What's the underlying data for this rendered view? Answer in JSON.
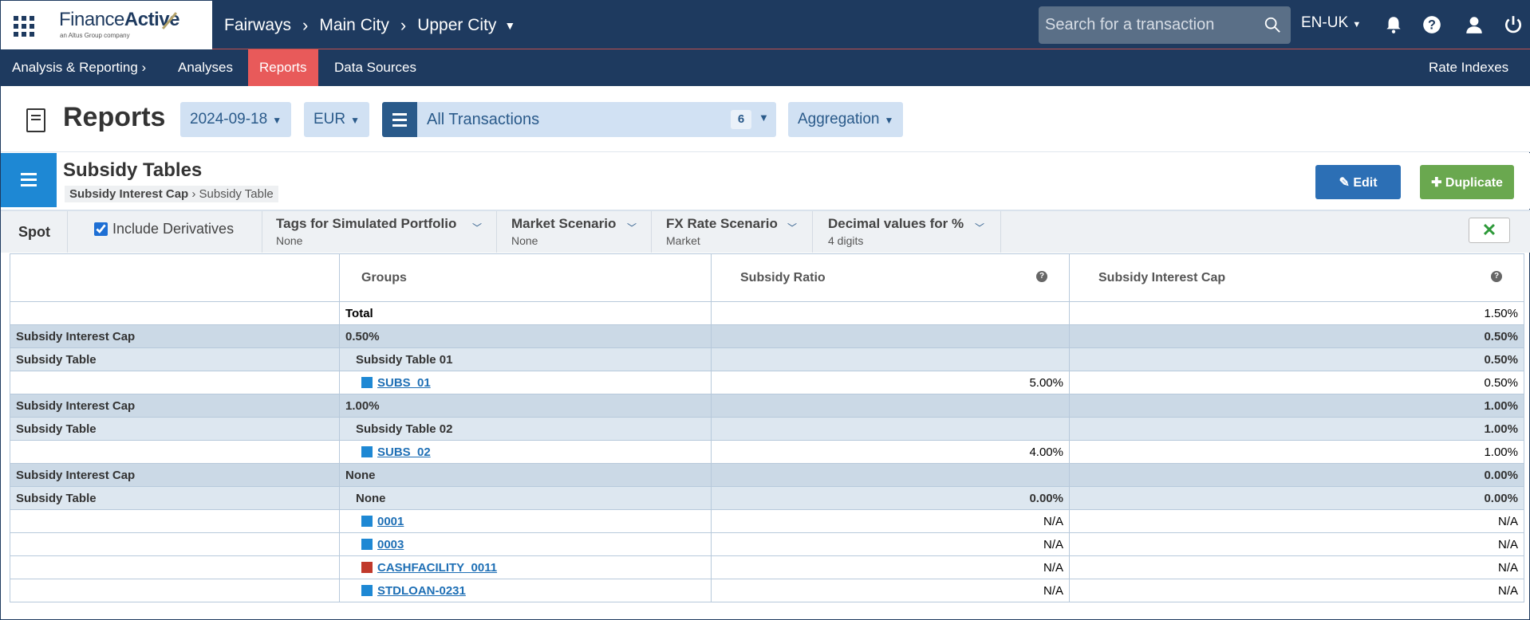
{
  "topbar": {
    "logo_main": "Finance",
    "logo_bold": "Active",
    "logo_sub": "an Altus Group company",
    "breadcrumb": [
      "Fairways",
      "Main City",
      "Upper City"
    ],
    "search_placeholder": "Search for a transaction",
    "language": "EN-UK"
  },
  "nav": {
    "section": "Analysis & Reporting",
    "items": [
      "Analyses",
      "Reports",
      "Data Sources"
    ],
    "active": "Reports",
    "right": "Rate Indexes"
  },
  "reports": {
    "title": "Reports",
    "date": "2024-09-18",
    "currency": "EUR",
    "transactions": "All Transactions",
    "transactions_count": "6",
    "aggregation": "Aggregation"
  },
  "subsidy": {
    "title": "Subsidy Tables",
    "crumb_bold": "Subsidy Interest Cap",
    "crumb_rest": "Subsidy Table",
    "edit_label": "Edit",
    "duplicate_label": "Duplicate"
  },
  "filters": {
    "spot": "Spot",
    "include_derivatives": "Include Derivatives",
    "tags_label": "Tags for Simulated Portfolio",
    "tags_value": "None",
    "market_label": "Market Scenario",
    "market_value": "None",
    "fx_label": "FX Rate Scenario",
    "fx_value": "Market",
    "decimal_label": "Decimal values for %",
    "decimal_value": "4 digits"
  },
  "table": {
    "headers": [
      "",
      "Groups",
      "Subsidy Ratio",
      "Subsidy Interest Cap"
    ],
    "total_label": "Total",
    "total_cap": "1.50%",
    "rows": [
      {
        "type": "lvl1",
        "c0": "Subsidy Interest Cap",
        "c1": "0.50%",
        "c2": "",
        "c3": "0.50%"
      },
      {
        "type": "lvl2",
        "c0": "Subsidy Table",
        "c1": "Subsidy Table 01",
        "c2": "",
        "c3": "0.50%"
      },
      {
        "type": "leaf",
        "c0": "",
        "c1": "SUBS_01",
        "color": "#1e88d4",
        "c2": "5.00%",
        "c3": "0.50%"
      },
      {
        "type": "lvl1",
        "c0": "Subsidy Interest Cap",
        "c1": "1.00%",
        "c2": "",
        "c3": "1.00%"
      },
      {
        "type": "lvl2",
        "c0": "Subsidy Table",
        "c1": "Subsidy Table 02",
        "c2": "",
        "c3": "1.00%"
      },
      {
        "type": "leaf",
        "c0": "",
        "c1": "SUBS_02",
        "color": "#1e88d4",
        "c2": "4.00%",
        "c3": "1.00%"
      },
      {
        "type": "lvl1",
        "c0": "Subsidy Interest Cap",
        "c1": "None",
        "c2": "",
        "c3": "0.00%"
      },
      {
        "type": "lvl2",
        "c0": "Subsidy Table",
        "c1": "None",
        "c2": "0.00%",
        "c3": "0.00%"
      },
      {
        "type": "leaf",
        "c0": "",
        "c1": "0001",
        "color": "#1e88d4",
        "c2": "N/A",
        "c3": "N/A"
      },
      {
        "type": "leaf",
        "c0": "",
        "c1": "0003",
        "color": "#1e88d4",
        "c2": "N/A",
        "c3": "N/A"
      },
      {
        "type": "leaf",
        "c0": "",
        "c1": "CASHFACILITY_0011",
        "color": "#c0392b",
        "c2": "N/A",
        "c3": "N/A"
      },
      {
        "type": "leaf",
        "c0": "",
        "c1": "STDLOAN-0231",
        "color": "#1e88d4",
        "c2": "N/A",
        "c3": "N/A"
      }
    ]
  }
}
